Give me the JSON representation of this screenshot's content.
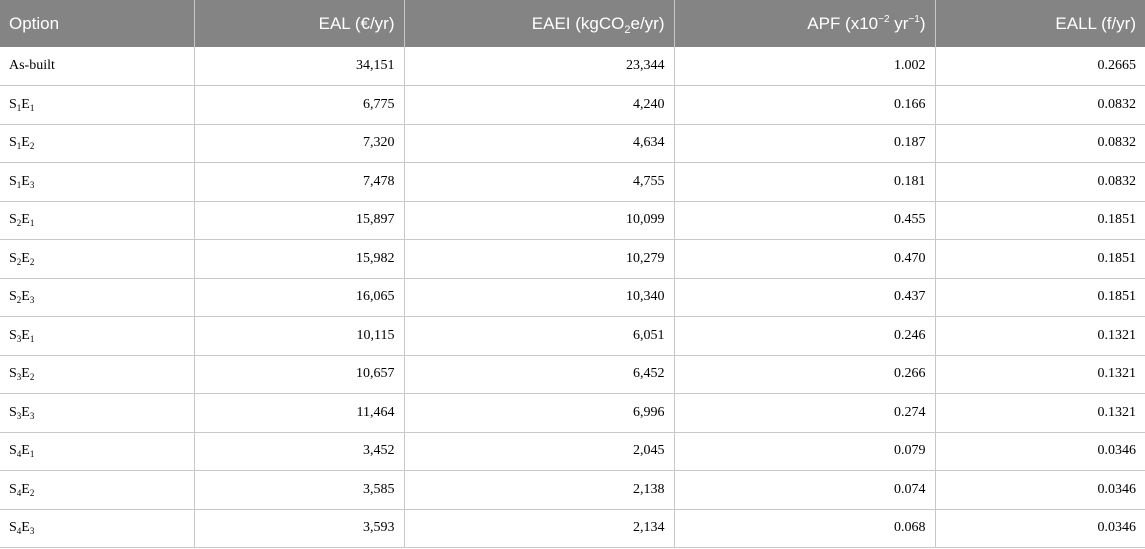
{
  "header": {
    "option": "Option",
    "eal": "EAL (€/yr)",
    "eaei": {
      "pre": "EAEI (kgCO",
      "sub": "2",
      "post": "e/yr)"
    },
    "apf": {
      "pre": "APF (x10",
      "sup": "−2",
      "mid": " yr",
      "sup2": "−1",
      "post": ")"
    },
    "eall": "EALL (f/yr)"
  },
  "rows": [
    {
      "label": "As-built",
      "eal": "34,151",
      "eaei": "23,344",
      "apf": "1.002",
      "eall": "0.2665"
    },
    {
      "s": "1",
      "e": "1",
      "eal": "6,775",
      "eaei": "4,240",
      "apf": "0.166",
      "eall": "0.0832"
    },
    {
      "s": "1",
      "e": "2",
      "eal": "7,320",
      "eaei": "4,634",
      "apf": "0.187",
      "eall": "0.0832"
    },
    {
      "s": "1",
      "e": "3",
      "eal": "7,478",
      "eaei": "4,755",
      "apf": "0.181",
      "eall": "0.0832"
    },
    {
      "s": "2",
      "e": "1",
      "eal": "15,897",
      "eaei": "10,099",
      "apf": "0.455",
      "eall": "0.1851"
    },
    {
      "s": "2",
      "e": "2",
      "eal": "15,982",
      "eaei": "10,279",
      "apf": "0.470",
      "eall": "0.1851"
    },
    {
      "s": "2",
      "e": "3",
      "eal": "16,065",
      "eaei": "10,340",
      "apf": "0.437",
      "eall": "0.1851"
    },
    {
      "s": "3",
      "e": "1",
      "eal": "10,115",
      "eaei": "6,051",
      "apf": "0.246",
      "eall": "0.1321"
    },
    {
      "s": "3",
      "e": "2",
      "eal": "10,657",
      "eaei": "6,452",
      "apf": "0.266",
      "eall": "0.1321"
    },
    {
      "s": "3",
      "e": "3",
      "eal": "11,464",
      "eaei": "6,996",
      "apf": "0.274",
      "eall": "0.1321"
    },
    {
      "s": "4",
      "e": "1",
      "eal": "3,452",
      "eaei": "2,045",
      "apf": "0.079",
      "eall": "0.0346"
    },
    {
      "s": "4",
      "e": "2",
      "eal": "3,585",
      "eaei": "2,138",
      "apf": "0.074",
      "eall": "0.0346"
    },
    {
      "s": "4",
      "e": "3",
      "eal": "3,593",
      "eaei": "2,134",
      "apf": "0.068",
      "eall": "0.0346"
    }
  ]
}
